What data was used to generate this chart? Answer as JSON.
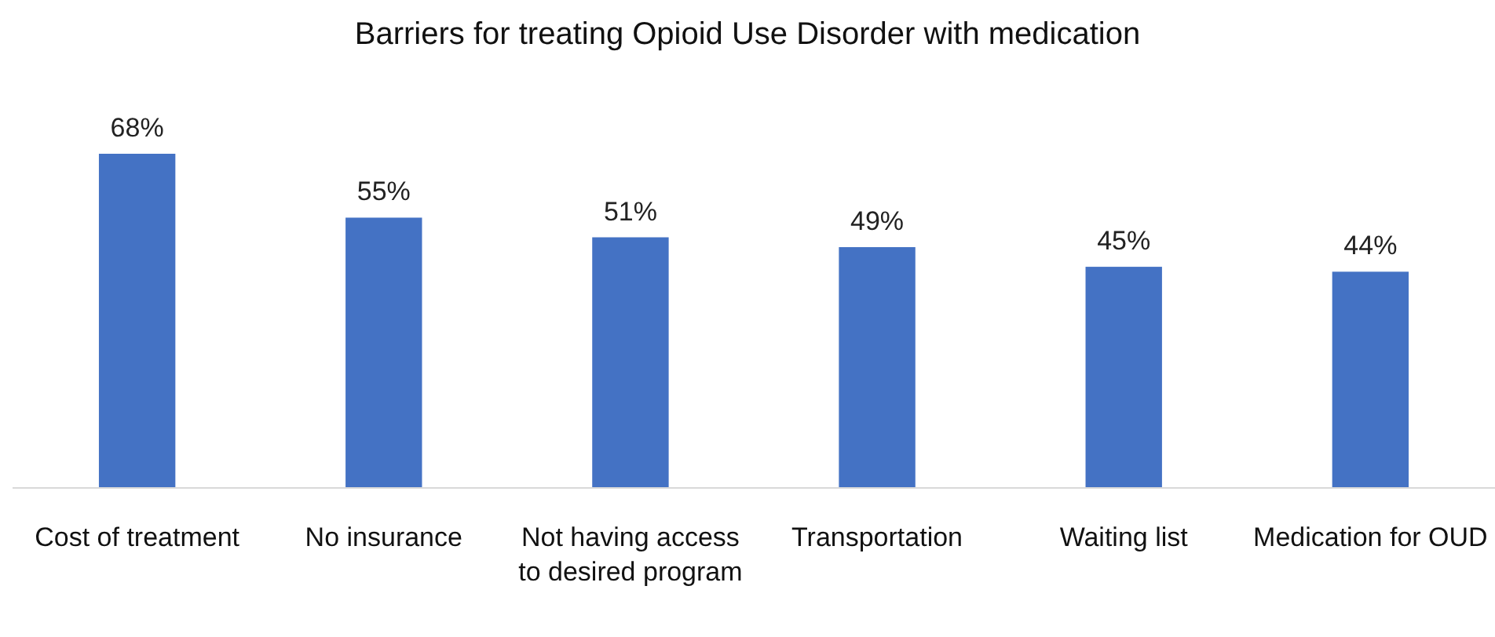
{
  "chart_data": {
    "type": "bar",
    "title": "Barriers for treating Opioid Use Disorder with medication",
    "categories": [
      "Cost of treatment",
      "No insurance",
      "Not having access to desired program",
      "Transportation",
      "Waiting list",
      "Medication for OUD"
    ],
    "values": [
      68,
      55,
      51,
      49,
      45,
      44
    ],
    "value_labels": [
      "68%",
      "55%",
      "51%",
      "49%",
      "45%",
      "44%"
    ],
    "color": "#4472c4",
    "grid": false
  }
}
